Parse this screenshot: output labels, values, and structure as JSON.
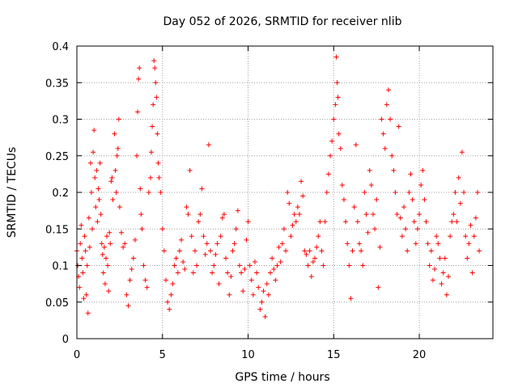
{
  "chart_data": {
    "type": "scatter",
    "title": "Day 052 of 2026, SRMTID for receiver nlib",
    "xlabel": "GPS time / hours",
    "ylabel": "SRMTID / TECUs",
    "xlim": [
      0,
      24.3
    ],
    "ylim": [
      0,
      0.4
    ],
    "x_ticks": [
      0,
      5,
      10,
      15,
      20
    ],
    "x_tick_labels": [
      "0",
      "5",
      "10",
      "15",
      "20"
    ],
    "y_ticks": [
      0,
      0.05,
      0.1,
      0.15,
      0.2,
      0.25,
      0.3,
      0.35,
      0.4
    ],
    "y_tick_labels": [
      "0",
      "0.05",
      "0.1",
      "0.15",
      "0.2",
      "0.25",
      "0.3",
      "0.35",
      "0.4"
    ],
    "grid": true,
    "marker": "plus",
    "series": [
      {
        "name": "SRMTID",
        "color": "#ff0000",
        "points": [
          [
            0.0,
            0.12
          ],
          [
            0.05,
            0.1
          ],
          [
            0.1,
            0.085
          ],
          [
            0.15,
            0.07
          ],
          [
            0.2,
            0.13
          ],
          [
            0.25,
            0.155
          ],
          [
            0.3,
            0.11
          ],
          [
            0.35,
            0.09
          ],
          [
            0.4,
            0.055
          ],
          [
            0.45,
            0.14
          ],
          [
            0.5,
            0.12
          ],
          [
            0.55,
            0.06
          ],
          [
            0.6,
            0.1
          ],
          [
            0.65,
            0.035
          ],
          [
            0.7,
            0.165
          ],
          [
            0.75,
            0.125
          ],
          [
            0.8,
            0.24
          ],
          [
            0.85,
            0.2
          ],
          [
            0.9,
            0.15
          ],
          [
            0.95,
            0.255
          ],
          [
            1.0,
            0.285
          ],
          [
            1.05,
            0.22
          ],
          [
            1.1,
            0.18
          ],
          [
            1.15,
            0.23
          ],
          [
            1.2,
            0.16
          ],
          [
            1.25,
            0.205
          ],
          [
            1.3,
            0.19
          ],
          [
            1.35,
            0.24
          ],
          [
            1.4,
            0.17
          ],
          [
            1.45,
            0.13
          ],
          [
            1.5,
            0.115
          ],
          [
            1.55,
            0.09
          ],
          [
            1.6,
            0.125
          ],
          [
            1.65,
            0.075
          ],
          [
            1.7,
            0.11
          ],
          [
            1.75,
            0.14
          ],
          [
            1.8,
            0.1
          ],
          [
            1.85,
            0.065
          ],
          [
            1.9,
            0.145
          ],
          [
            1.95,
            0.13
          ],
          [
            2.0,
            0.215
          ],
          [
            2.05,
            0.22
          ],
          [
            2.1,
            0.19
          ],
          [
            2.2,
            0.28
          ],
          [
            2.25,
            0.23
          ],
          [
            2.3,
            0.2
          ],
          [
            2.35,
            0.25
          ],
          [
            2.4,
            0.26
          ],
          [
            2.45,
            0.3
          ],
          [
            2.5,
            0.18
          ],
          [
            2.6,
            0.145
          ],
          [
            2.7,
            0.125
          ],
          [
            2.8,
            0.13
          ],
          [
            2.9,
            0.06
          ],
          [
            3.0,
            0.045
          ],
          [
            3.1,
            0.08
          ],
          [
            3.2,
            0.095
          ],
          [
            3.3,
            0.11
          ],
          [
            3.4,
            0.135
          ],
          [
            3.5,
            0.25
          ],
          [
            3.55,
            0.31
          ],
          [
            3.6,
            0.355
          ],
          [
            3.65,
            0.37
          ],
          [
            3.7,
            0.205
          ],
          [
            3.75,
            0.17
          ],
          [
            3.8,
            0.15
          ],
          [
            3.9,
            0.1
          ],
          [
            4.0,
            0.08
          ],
          [
            4.1,
            0.07
          ],
          [
            4.2,
            0.2
          ],
          [
            4.3,
            0.22
          ],
          [
            4.35,
            0.255
          ],
          [
            4.4,
            0.29
          ],
          [
            4.45,
            0.32
          ],
          [
            4.5,
            0.38
          ],
          [
            4.55,
            0.37
          ],
          [
            4.6,
            0.35
          ],
          [
            4.65,
            0.33
          ],
          [
            4.7,
            0.28
          ],
          [
            4.75,
            0.24
          ],
          [
            4.8,
            0.22
          ],
          [
            4.9,
            0.2
          ],
          [
            5.0,
            0.15
          ],
          [
            5.1,
            0.12
          ],
          [
            5.2,
            0.08
          ],
          [
            5.3,
            0.05
          ],
          [
            5.4,
            0.04
          ],
          [
            5.5,
            0.06
          ],
          [
            5.6,
            0.075
          ],
          [
            5.7,
            0.1
          ],
          [
            5.8,
            0.11
          ],
          [
            5.9,
            0.09
          ],
          [
            6.0,
            0.12
          ],
          [
            6.1,
            0.135
          ],
          [
            6.2,
            0.105
          ],
          [
            6.3,
            0.095
          ],
          [
            6.4,
            0.18
          ],
          [
            6.5,
            0.17
          ],
          [
            6.6,
            0.23
          ],
          [
            6.7,
            0.14
          ],
          [
            6.8,
            0.09
          ],
          [
            6.9,
            0.12
          ],
          [
            7.0,
            0.1
          ],
          [
            7.1,
            0.16
          ],
          [
            7.2,
            0.17
          ],
          [
            7.3,
            0.205
          ],
          [
            7.4,
            0.14
          ],
          [
            7.5,
            0.115
          ],
          [
            7.6,
            0.13
          ],
          [
            7.7,
            0.265
          ],
          [
            7.8,
            0.12
          ],
          [
            7.9,
            0.09
          ],
          [
            8.0,
            0.1
          ],
          [
            8.1,
            0.115
          ],
          [
            8.2,
            0.13
          ],
          [
            8.3,
            0.075
          ],
          [
            8.4,
            0.14
          ],
          [
            8.5,
            0.165
          ],
          [
            8.6,
            0.17
          ],
          [
            8.7,
            0.11
          ],
          [
            8.8,
            0.09
          ],
          [
            8.9,
            0.06
          ],
          [
            9.0,
            0.085
          ],
          [
            9.1,
            0.12
          ],
          [
            9.2,
            0.13
          ],
          [
            9.3,
            0.15
          ],
          [
            9.4,
            0.175
          ],
          [
            9.5,
            0.1
          ],
          [
            9.6,
            0.09
          ],
          [
            9.7,
            0.065
          ],
          [
            9.8,
            0.095
          ],
          [
            9.9,
            0.135
          ],
          [
            10.0,
            0.16
          ],
          [
            10.1,
            0.1
          ],
          [
            10.2,
            0.08
          ],
          [
            10.3,
            0.06
          ],
          [
            10.4,
            0.105
          ],
          [
            10.5,
            0.09
          ],
          [
            10.6,
            0.07
          ],
          [
            10.7,
            0.04
          ],
          [
            10.8,
            0.05
          ],
          [
            10.9,
            0.065
          ],
          [
            11.0,
            0.03
          ],
          [
            11.1,
            0.075
          ],
          [
            11.2,
            0.06
          ],
          [
            11.3,
            0.09
          ],
          [
            11.4,
            0.11
          ],
          [
            11.5,
            0.095
          ],
          [
            11.6,
            0.08
          ],
          [
            11.7,
            0.1
          ],
          [
            11.8,
            0.125
          ],
          [
            11.9,
            0.105
          ],
          [
            12.0,
            0.13
          ],
          [
            12.1,
            0.15
          ],
          [
            12.2,
            0.12
          ],
          [
            12.3,
            0.2
          ],
          [
            12.4,
            0.185
          ],
          [
            12.5,
            0.14
          ],
          [
            12.6,
            0.155
          ],
          [
            12.7,
            0.17
          ],
          [
            12.8,
            0.16
          ],
          [
            12.9,
            0.18
          ],
          [
            13.0,
            0.17
          ],
          [
            13.1,
            0.215
          ],
          [
            13.2,
            0.195
          ],
          [
            13.3,
            0.12
          ],
          [
            13.4,
            0.115
          ],
          [
            13.5,
            0.1
          ],
          [
            13.6,
            0.12
          ],
          [
            13.7,
            0.085
          ],
          [
            13.8,
            0.105
          ],
          [
            13.9,
            0.11
          ],
          [
            14.0,
            0.125
          ],
          [
            14.1,
            0.14
          ],
          [
            14.2,
            0.16
          ],
          [
            14.3,
            0.12
          ],
          [
            14.4,
            0.1
          ],
          [
            14.5,
            0.16
          ],
          [
            14.6,
            0.2
          ],
          [
            14.7,
            0.225
          ],
          [
            14.8,
            0.25
          ],
          [
            14.9,
            0.27
          ],
          [
            15.0,
            0.3
          ],
          [
            15.1,
            0.32
          ],
          [
            15.15,
            0.385
          ],
          [
            15.2,
            0.35
          ],
          [
            15.25,
            0.33
          ],
          [
            15.3,
            0.28
          ],
          [
            15.4,
            0.26
          ],
          [
            15.5,
            0.21
          ],
          [
            15.6,
            0.19
          ],
          [
            15.7,
            0.16
          ],
          [
            15.8,
            0.13
          ],
          [
            15.9,
            0.1
          ],
          [
            16.0,
            0.055
          ],
          [
            16.1,
            0.12
          ],
          [
            16.2,
            0.18
          ],
          [
            16.3,
            0.265
          ],
          [
            16.4,
            0.16
          ],
          [
            16.5,
            0.13
          ],
          [
            16.6,
            0.12
          ],
          [
            16.7,
            0.1
          ],
          [
            16.8,
            0.2
          ],
          [
            16.9,
            0.17
          ],
          [
            17.0,
            0.145
          ],
          [
            17.1,
            0.23
          ],
          [
            17.2,
            0.21
          ],
          [
            17.3,
            0.17
          ],
          [
            17.4,
            0.15
          ],
          [
            17.5,
            0.19
          ],
          [
            17.6,
            0.07
          ],
          [
            17.7,
            0.125
          ],
          [
            17.8,
            0.3
          ],
          [
            17.9,
            0.28
          ],
          [
            18.0,
            0.26
          ],
          [
            18.1,
            0.32
          ],
          [
            18.2,
            0.34
          ],
          [
            18.3,
            0.3
          ],
          [
            18.4,
            0.25
          ],
          [
            18.5,
            0.23
          ],
          [
            18.6,
            0.2
          ],
          [
            18.7,
            0.17
          ],
          [
            18.8,
            0.29
          ],
          [
            18.9,
            0.165
          ],
          [
            19.0,
            0.14
          ],
          [
            19.1,
            0.18
          ],
          [
            19.2,
            0.15
          ],
          [
            19.3,
            0.12
          ],
          [
            19.4,
            0.2
          ],
          [
            19.5,
            0.225
          ],
          [
            19.6,
            0.19
          ],
          [
            19.7,
            0.16
          ],
          [
            19.8,
            0.13
          ],
          [
            19.9,
            0.15
          ],
          [
            20.0,
            0.17
          ],
          [
            20.1,
            0.21
          ],
          [
            20.2,
            0.23
          ],
          [
            20.3,
            0.19
          ],
          [
            20.4,
            0.16
          ],
          [
            20.5,
            0.13
          ],
          [
            20.6,
            0.1
          ],
          [
            20.7,
            0.12
          ],
          [
            20.8,
            0.08
          ],
          [
            20.9,
            0.095
          ],
          [
            21.0,
            0.14
          ],
          [
            21.1,
            0.13
          ],
          [
            21.2,
            0.11
          ],
          [
            21.3,
            0.075
          ],
          [
            21.4,
            0.09
          ],
          [
            21.5,
            0.11
          ],
          [
            21.6,
            0.06
          ],
          [
            21.7,
            0.085
          ],
          [
            21.8,
            0.14
          ],
          [
            21.9,
            0.16
          ],
          [
            22.0,
            0.17
          ],
          [
            22.1,
            0.2
          ],
          [
            22.2,
            0.16
          ],
          [
            22.3,
            0.22
          ],
          [
            22.4,
            0.185
          ],
          [
            22.5,
            0.255
          ],
          [
            22.6,
            0.2
          ],
          [
            22.7,
            0.14
          ],
          [
            22.8,
            0.11
          ],
          [
            22.9,
            0.13
          ],
          [
            23.0,
            0.155
          ],
          [
            23.1,
            0.09
          ],
          [
            23.2,
            0.14
          ],
          [
            23.3,
            0.165
          ],
          [
            23.4,
            0.2
          ],
          [
            23.5,
            0.12
          ]
        ]
      }
    ]
  }
}
